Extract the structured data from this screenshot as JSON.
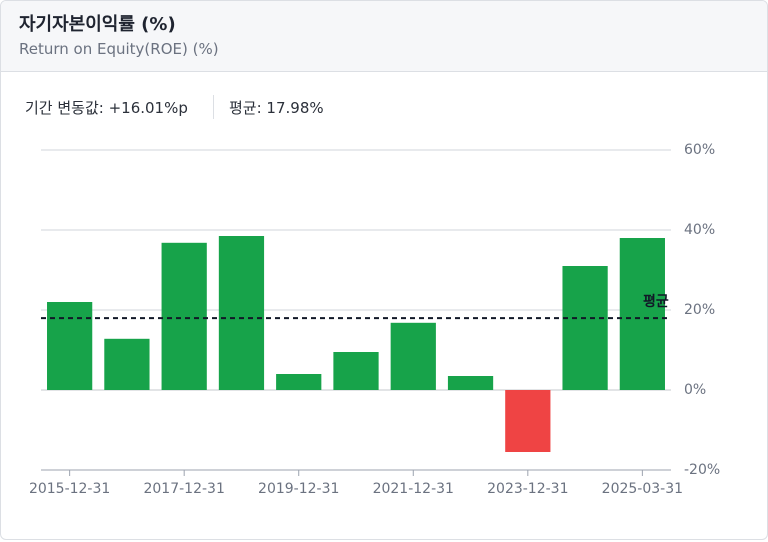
{
  "header": {
    "title": "자기자본이익률 (%)",
    "subtitle": "Return on Equity(ROE) (%)"
  },
  "summary": {
    "change": "기간 변동값: +16.01%p",
    "average": "평균: 17.98%"
  },
  "chart_data": {
    "type": "bar",
    "categories": [
      "2015-12-31",
      null,
      "2017-12-31",
      null,
      "2019-12-31",
      null,
      "2021-12-31",
      null,
      "2023-12-31",
      null,
      "2025-03-31"
    ],
    "values": [
      22,
      12.8,
      36.8,
      38.5,
      4,
      9.5,
      16.8,
      3.5,
      -15.5,
      31,
      38
    ],
    "positive_color": "#17a34a",
    "negative_color": "#ef4444",
    "ylim": [
      -20,
      60
    ],
    "yticks": [
      {
        "value": -20,
        "label": "-20%"
      },
      {
        "value": 0,
        "label": "0%"
      },
      {
        "value": 20,
        "label": "20%"
      },
      {
        "value": 40,
        "label": "40%"
      },
      {
        "value": 60,
        "label": "60%"
      }
    ],
    "grid": true,
    "average": {
      "value": 17.98,
      "label": "평균"
    }
  }
}
